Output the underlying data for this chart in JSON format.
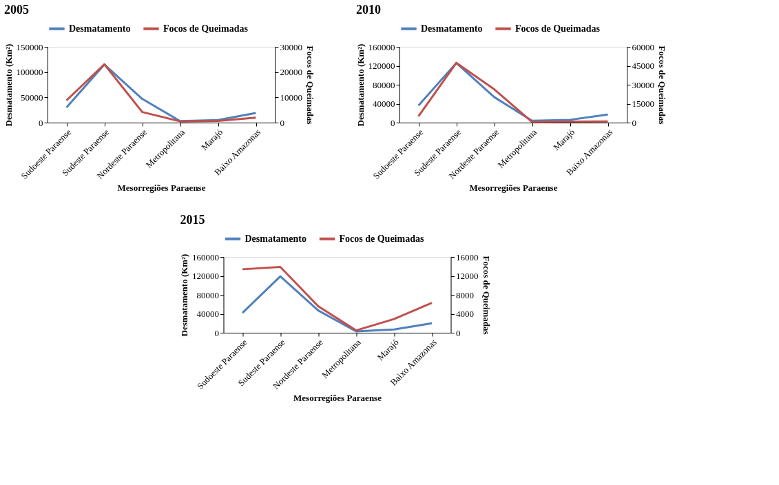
{
  "chart_data": [
    {
      "type": "line",
      "title": "2005",
      "xlabel": "Mesorregiões Paraense",
      "ylabel": "Desmatamento  (Km²)",
      "y2label": "Focos de Queimadas",
      "categories": [
        "Sudoeste Paraense",
        "Sudeste Paraense",
        "Nordeste Paraense",
        "Metropolitana",
        "Marajó",
        "Baixo Amazonas"
      ],
      "ylim": [
        0,
        150000
      ],
      "yticks": [
        0,
        50000,
        100000,
        150000
      ],
      "y2lim": [
        0,
        30000
      ],
      "y2ticks": [
        0,
        10000,
        20000,
        30000
      ],
      "legend": "top",
      "grid": false,
      "marker": "none",
      "line_style": "solid",
      "series": [
        {
          "name": "Desmatamento",
          "color": "#4f81bd",
          "values": [
            30000,
            115000,
            47000,
            3000,
            5000,
            19000
          ]
        },
        {
          "name": "Focos de Queimadas",
          "color": "#c0504d",
          "axis": "y2",
          "values": [
            8800,
            23100,
            4200,
            500,
            700,
            2000
          ]
        }
      ]
    },
    {
      "type": "line",
      "title": "2010",
      "xlabel": "Mesorregiões Paraense",
      "ylabel": "Desmatamento  (Km²)",
      "y2label": "Focos de Queimadas",
      "categories": [
        "Sudoeste Paraense",
        "Sudeste Paraense",
        "Nordeste Paraense",
        "Metropolitana",
        "Marajó",
        "Baixo Amazonas"
      ],
      "ylim": [
        0,
        160000
      ],
      "yticks": [
        0,
        40000,
        80000,
        120000,
        160000
      ],
      "y2lim": [
        0,
        60000
      ],
      "y2ticks": [
        0,
        15000,
        30000,
        45000,
        60000
      ],
      "legend": "top",
      "grid": false,
      "marker": "none",
      "line_style": "solid",
      "series": [
        {
          "name": "Desmatamento",
          "color": "#4f81bd",
          "values": [
            36000,
            126000,
            54000,
            4000,
            6000,
            17000
          ]
        },
        {
          "name": "Focos de Queimadas",
          "color": "#c0504d",
          "axis": "y2",
          "values": [
            5000,
            47300,
            26400,
            500,
            800,
            900
          ]
        }
      ]
    },
    {
      "type": "line",
      "title": "2015",
      "xlabel": "Mesorregiões Paraense",
      "ylabel": "Desmatamento  (Km²)",
      "y2label": "Focos de Queimadas",
      "categories": [
        "Sudoeste Paraense",
        "Sudeste Paraense",
        "Nordeste Paraense",
        "Metropolitana",
        "Marajó",
        "Baixo Amazonas"
      ],
      "ylim": [
        0,
        160000
      ],
      "yticks": [
        0,
        40000,
        80000,
        120000,
        160000
      ],
      "y2lim": [
        0,
        16000
      ],
      "y2ticks": [
        0,
        4000,
        8000,
        12000,
        16000
      ],
      "legend": "top",
      "grid": false,
      "marker": "none",
      "line_style": "solid",
      "series": [
        {
          "name": "Desmatamento",
          "color": "#4f81bd",
          "values": [
            42000,
            119000,
            47000,
            3000,
            7000,
            20000
          ]
        },
        {
          "name": "Focos de Queimadas",
          "color": "#c0504d",
          "axis": "y2",
          "values": [
            13400,
            13900,
            5600,
            500,
            2900,
            6300
          ]
        }
      ]
    }
  ]
}
